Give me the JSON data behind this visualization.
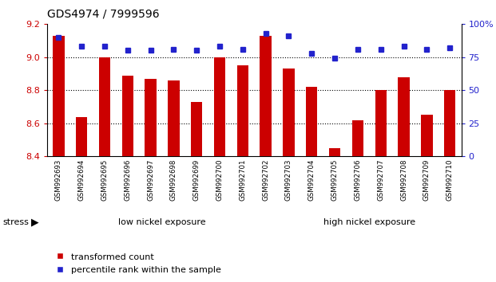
{
  "title": "GDS4974 / 7999596",
  "samples": [
    "GSM992693",
    "GSM992694",
    "GSM992695",
    "GSM992696",
    "GSM992697",
    "GSM992698",
    "GSM992699",
    "GSM992700",
    "GSM992701",
    "GSM992702",
    "GSM992703",
    "GSM992704",
    "GSM992705",
    "GSM992706",
    "GSM992707",
    "GSM992708",
    "GSM992709",
    "GSM992710"
  ],
  "bar_values": [
    9.13,
    8.64,
    9.0,
    8.89,
    8.87,
    8.86,
    8.73,
    9.0,
    8.95,
    9.13,
    8.93,
    8.82,
    8.45,
    8.62,
    8.8,
    8.88,
    8.65,
    8.8
  ],
  "dot_values": [
    90,
    83,
    83,
    80,
    80,
    81,
    80,
    83,
    81,
    93,
    91,
    78,
    74,
    81,
    81,
    83,
    81,
    82
  ],
  "bar_color": "#cc0000",
  "dot_color": "#2222cc",
  "ymin": 8.4,
  "ymax": 9.2,
  "y_ticks": [
    8.4,
    8.6,
    8.8,
    9.0,
    9.2
  ],
  "y2min": 0,
  "y2max": 100,
  "y2_ticks": [
    0,
    25,
    50,
    75,
    100
  ],
  "group1_count": 10,
  "group1_label": "low nickel exposure",
  "group2_label": "high nickel exposure",
  "group_color1": "#b8f0b8",
  "group_color2": "#44dd44",
  "stress_label": "stress",
  "legend_bar": "transformed count",
  "legend_dot": "percentile rank within the sample",
  "background_color": "#ffffff",
  "tick_bg_color": "#c8c8c8",
  "grid_lines": [
    8.6,
    8.8,
    9.0
  ]
}
